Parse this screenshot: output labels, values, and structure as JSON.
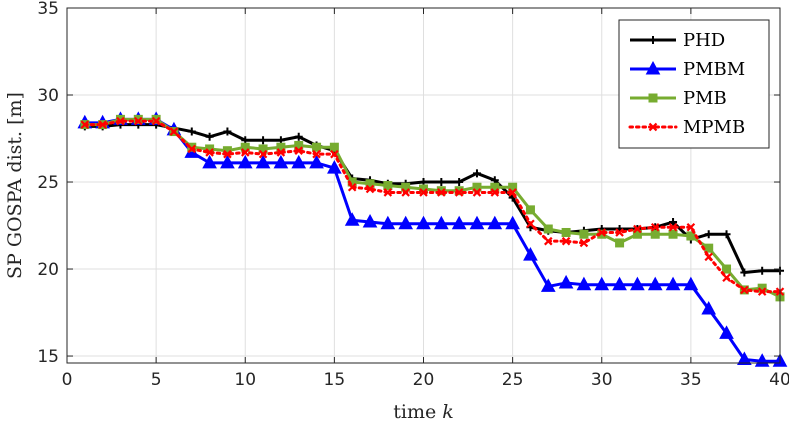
{
  "chart_data": {
    "type": "line",
    "title": "",
    "xlabel": "time k",
    "ylabel": "SP GOSPA dist. [m]",
    "xlim": [
      0,
      40
    ],
    "ylim": [
      14.6,
      35
    ],
    "xticks": [
      0,
      5,
      10,
      15,
      20,
      25,
      30,
      35,
      40
    ],
    "yticks": [
      15,
      20,
      25,
      30,
      35
    ],
    "grid": true,
    "legend_position": "top-right",
    "x": [
      1,
      2,
      3,
      4,
      5,
      6,
      7,
      8,
      9,
      10,
      11,
      12,
      13,
      14,
      15,
      16,
      17,
      18,
      19,
      20,
      21,
      22,
      23,
      24,
      25,
      26,
      27,
      28,
      29,
      30,
      31,
      32,
      33,
      34,
      35,
      36,
      37,
      38,
      39,
      40
    ],
    "series": [
      {
        "name": "PHD",
        "color": "#000000",
        "marker": "plus",
        "dash": "solid",
        "values": [
          28.2,
          28.2,
          28.3,
          28.3,
          28.3,
          28.1,
          27.9,
          27.6,
          27.9,
          27.4,
          27.4,
          27.4,
          27.6,
          27.1,
          26.8,
          25.2,
          25.1,
          24.9,
          24.9,
          25.0,
          25.0,
          25.0,
          25.5,
          25.1,
          24.1,
          22.4,
          22.2,
          22.1,
          22.2,
          22.3,
          22.3,
          22.3,
          22.4,
          22.7,
          21.7,
          22.0,
          22.0,
          19.8,
          19.9,
          19.9
        ]
      },
      {
        "name": "PMBM",
        "color": "#0000ff",
        "marker": "triangle",
        "dash": "solid",
        "values": [
          28.4,
          28.4,
          28.6,
          28.6,
          28.6,
          28.0,
          26.7,
          26.1,
          26.1,
          26.1,
          26.1,
          26.1,
          26.1,
          26.1,
          25.8,
          22.8,
          22.7,
          22.6,
          22.6,
          22.6,
          22.6,
          22.6,
          22.6,
          22.6,
          22.6,
          20.8,
          19.0,
          19.2,
          19.1,
          19.1,
          19.1,
          19.1,
          19.1,
          19.1,
          19.1,
          17.7,
          16.3,
          14.8,
          14.7,
          14.7
        ]
      },
      {
        "name": "PMB",
        "color": "#77ac30",
        "marker": "square",
        "dash": "solid",
        "values": [
          28.3,
          28.3,
          28.6,
          28.6,
          28.6,
          27.9,
          27.0,
          26.9,
          26.8,
          27.0,
          26.9,
          27.0,
          27.1,
          27.0,
          27.0,
          25.0,
          24.9,
          24.8,
          24.7,
          24.6,
          24.5,
          24.5,
          24.7,
          24.7,
          24.7,
          23.4,
          22.3,
          22.1,
          22.0,
          22.0,
          21.5,
          22.0,
          22.0,
          22.0,
          21.9,
          21.2,
          20.0,
          18.8,
          18.9,
          18.4
        ]
      },
      {
        "name": "MPMB",
        "color": "#ff0000",
        "marker": "x",
        "dash": "dotted",
        "values": [
          28.3,
          28.3,
          28.5,
          28.5,
          28.5,
          27.9,
          26.9,
          26.7,
          26.6,
          26.7,
          26.6,
          26.7,
          26.8,
          26.6,
          26.6,
          24.7,
          24.6,
          24.4,
          24.4,
          24.4,
          24.4,
          24.4,
          24.4,
          24.4,
          24.4,
          22.6,
          21.6,
          21.6,
          21.5,
          22.1,
          22.1,
          22.3,
          22.4,
          22.4,
          22.4,
          20.7,
          19.5,
          18.8,
          18.7,
          18.7
        ]
      }
    ]
  }
}
